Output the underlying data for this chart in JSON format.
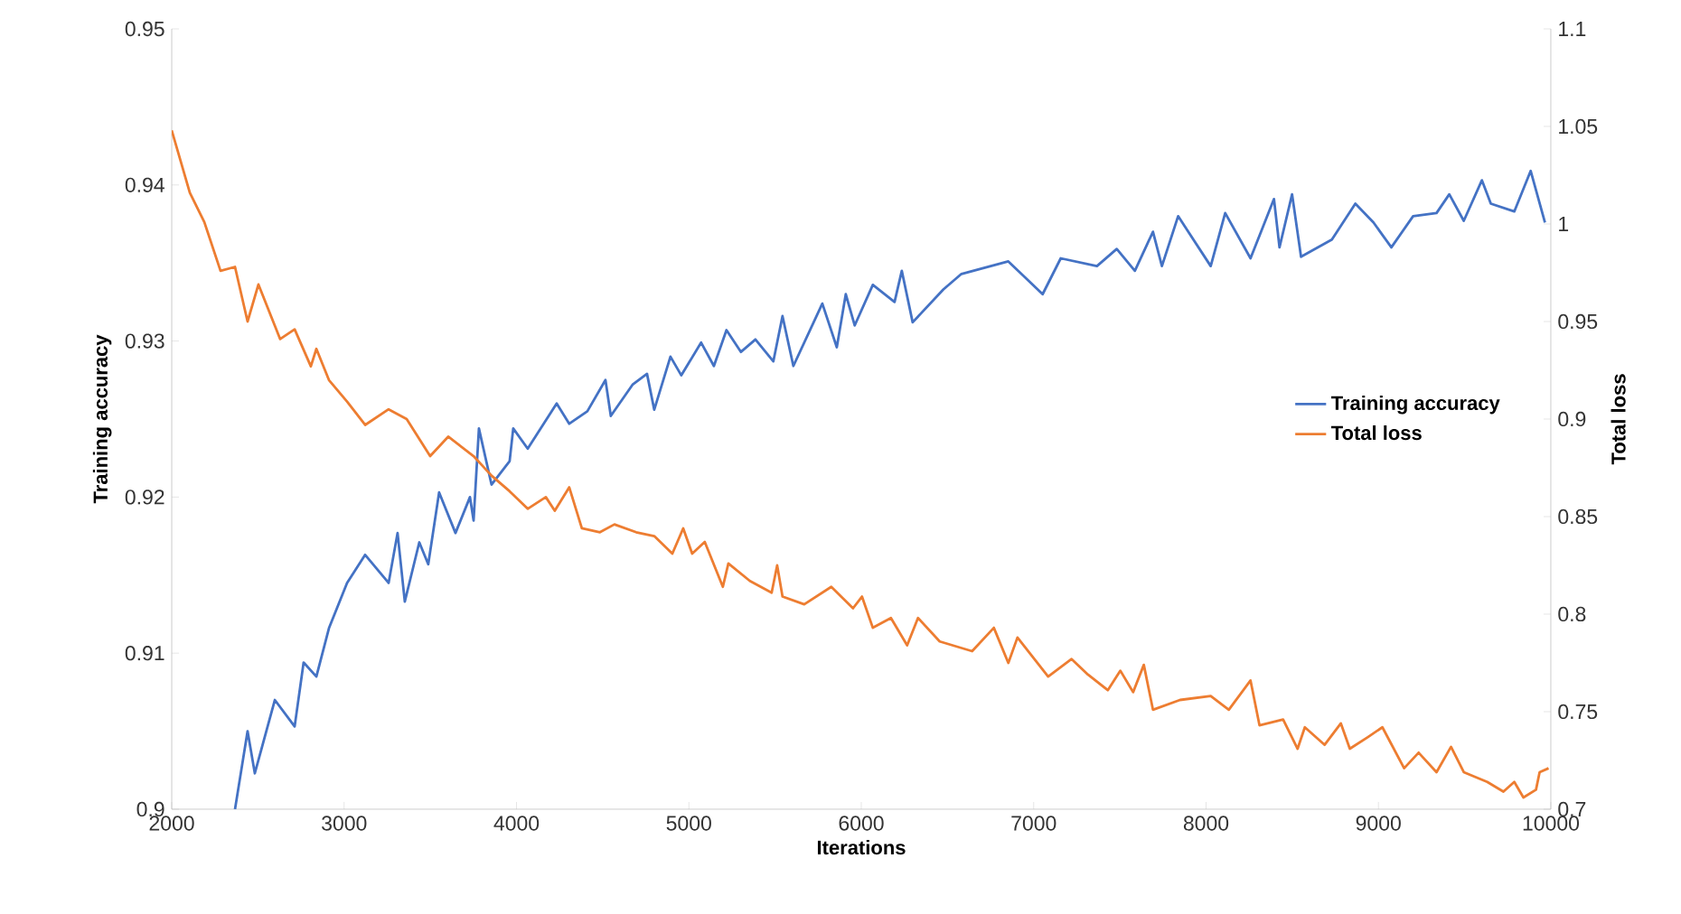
{
  "chart_data": {
    "type": "line",
    "xlabel": "Iterations",
    "ylabel": "Training accuracy",
    "y2label": "Total loss",
    "xlim": [
      2000,
      10000
    ],
    "xticks": [
      2000,
      3000,
      4000,
      5000,
      6000,
      7000,
      8000,
      9000,
      10000
    ],
    "ylim": [
      0.9,
      0.95
    ],
    "yticks": [
      0.9,
      0.91,
      0.92,
      0.93,
      0.94,
      0.95
    ],
    "y2lim": [
      0.7,
      1.1
    ],
    "y2ticks": [
      0.7,
      0.75,
      0.8,
      0.85,
      0.9,
      0.95,
      1,
      1.05,
      1.1
    ],
    "grid": false,
    "legend": "right",
    "marker": "none",
    "line_style": "solid",
    "series": [
      {
        "name": "Training accuracy",
        "color": "#4472c4",
        "x": [
          2367,
          2440,
          2482,
          2524,
          2598,
          2713,
          2765,
          2839,
          2912,
          3017,
          3122,
          3258,
          3310,
          3352,
          3436,
          3488,
          3551,
          3646,
          3730,
          3751,
          3782,
          3855,
          3960,
          3981,
          4065,
          4233,
          4306,
          4411,
          4516,
          4547,
          4673,
          4757,
          4799,
          4893,
          4956,
          5071,
          5145,
          5218,
          5302,
          5386,
          5490,
          5543,
          5606,
          5774,
          5858,
          5910,
          5962,
          6067,
          6193,
          6235,
          6298,
          6476,
          6581,
          6853,
          6948,
          7052,
          7157,
          7367,
          7482,
          7587,
          7692,
          7744,
          7838,
          8027,
          8111,
          8258,
          8394,
          8426,
          8499,
          8551,
          8730,
          8866,
          8971,
          9075,
          9201,
          9337,
          9411,
          9495,
          9600,
          9652,
          9788,
          9883,
          9966
        ],
        "values": [
          0.9,
          0.905,
          0.9023,
          0.904,
          0.907,
          0.9053,
          0.9094,
          0.9085,
          0.9116,
          0.9145,
          0.9163,
          0.9145,
          0.9177,
          0.9133,
          0.9171,
          0.9157,
          0.9203,
          0.9177,
          0.92,
          0.9185,
          0.9244,
          0.9208,
          0.9223,
          0.9244,
          0.9231,
          0.926,
          0.9247,
          0.9255,
          0.9275,
          0.9252,
          0.9272,
          0.9279,
          0.9256,
          0.929,
          0.9278,
          0.9299,
          0.9284,
          0.9307,
          0.9293,
          0.9301,
          0.9287,
          0.9316,
          0.9284,
          0.9324,
          0.9296,
          0.933,
          0.931,
          0.9336,
          0.9325,
          0.9345,
          0.9312,
          0.9333,
          0.9343,
          0.9351,
          0.9341,
          0.933,
          0.9353,
          0.9348,
          0.9359,
          0.9345,
          0.937,
          0.9348,
          0.938,
          0.9348,
          0.9382,
          0.9353,
          0.9391,
          0.936,
          0.9394,
          0.9354,
          0.9365,
          0.9388,
          0.9376,
          0.936,
          0.938,
          0.9382,
          0.9394,
          0.9377,
          0.9403,
          0.9388,
          0.9383,
          0.9409,
          0.9376
        ]
      },
      {
        "name": "Total loss",
        "color": "#ed7d31",
        "axis": "y2",
        "x": [
          2000,
          2105,
          2189,
          2283,
          2367,
          2440,
          2503,
          2629,
          2713,
          2807,
          2839,
          2912,
          3017,
          3122,
          3258,
          3363,
          3499,
          3604,
          3751,
          3855,
          3960,
          4065,
          4170,
          4222,
          4306,
          4379,
          4484,
          4568,
          4694,
          4799,
          4904,
          4967,
          5019,
          5092,
          5197,
          5229,
          5354,
          5480,
          5512,
          5543,
          5669,
          5826,
          5952,
          6004,
          6067,
          6172,
          6266,
          6329,
          6455,
          6643,
          6769,
          6853,
          6906,
          7084,
          7220,
          7315,
          7430,
          7503,
          7577,
          7639,
          7692,
          7849,
          8027,
          8132,
          8258,
          8310,
          8447,
          8531,
          8573,
          8688,
          8782,
          8834,
          8939,
          9023,
          9149,
          9233,
          9337,
          9421,
          9495,
          9631,
          9725,
          9788,
          9841,
          9914,
          9935,
          9987
        ],
        "values": [
          1.048,
          1.016,
          1.001,
          0.976,
          0.978,
          0.95,
          0.969,
          0.941,
          0.946,
          0.927,
          0.936,
          0.92,
          0.909,
          0.897,
          0.905,
          0.9,
          0.881,
          0.891,
          0.881,
          0.871,
          0.863,
          0.854,
          0.86,
          0.853,
          0.865,
          0.844,
          0.842,
          0.846,
          0.842,
          0.84,
          0.831,
          0.844,
          0.831,
          0.837,
          0.814,
          0.826,
          0.817,
          0.811,
          0.825,
          0.809,
          0.805,
          0.814,
          0.803,
          0.809,
          0.793,
          0.798,
          0.784,
          0.798,
          0.786,
          0.781,
          0.793,
          0.775,
          0.788,
          0.768,
          0.777,
          0.769,
          0.761,
          0.771,
          0.76,
          0.774,
          0.751,
          0.756,
          0.758,
          0.751,
          0.766,
          0.743,
          0.746,
          0.731,
          0.742,
          0.733,
          0.744,
          0.731,
          0.737,
          0.742,
          0.721,
          0.729,
          0.719,
          0.732,
          0.719,
          0.714,
          0.709,
          0.714,
          0.706,
          0.71,
          0.719,
          0.721
        ]
      }
    ]
  }
}
